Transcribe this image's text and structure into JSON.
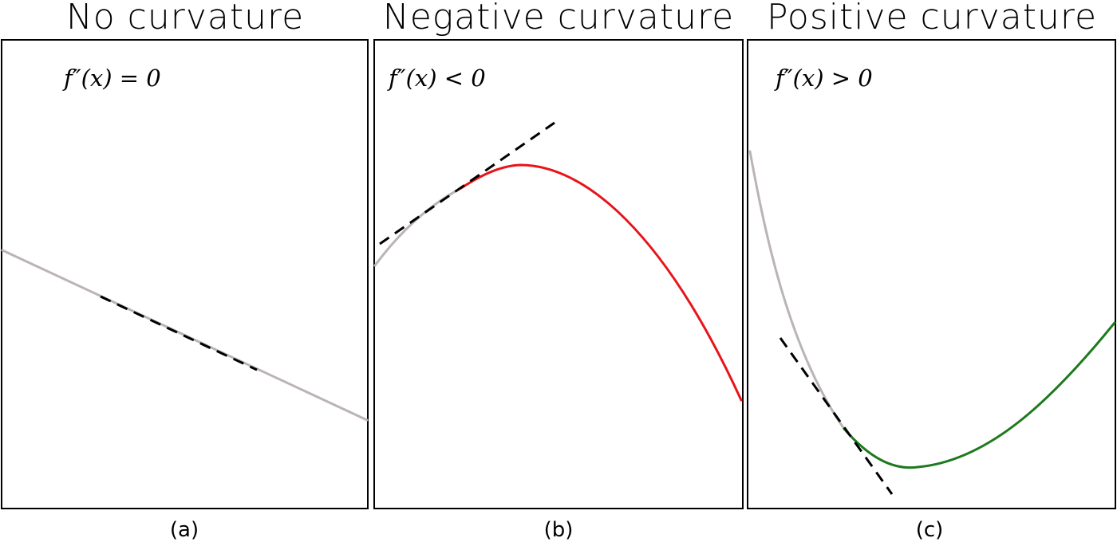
{
  "panels": [
    {
      "id": "a",
      "title": "No curvature",
      "condition": "f″(x) = 0",
      "caption": "(a)",
      "curve_color": "#bab4b6",
      "highlight_color": "#bab4b6"
    },
    {
      "id": "b",
      "title": "Negative curvature",
      "condition": "f″(x) < 0",
      "caption": "(b)",
      "curve_color": "#bab4b6",
      "highlight_color": "#e8141a"
    },
    {
      "id": "c",
      "title": "Positive curvature",
      "condition": "f″(x) > 0",
      "caption": "(c)",
      "curve_color": "#bab4b6",
      "highlight_color": "#1e7a1e"
    }
  ]
}
